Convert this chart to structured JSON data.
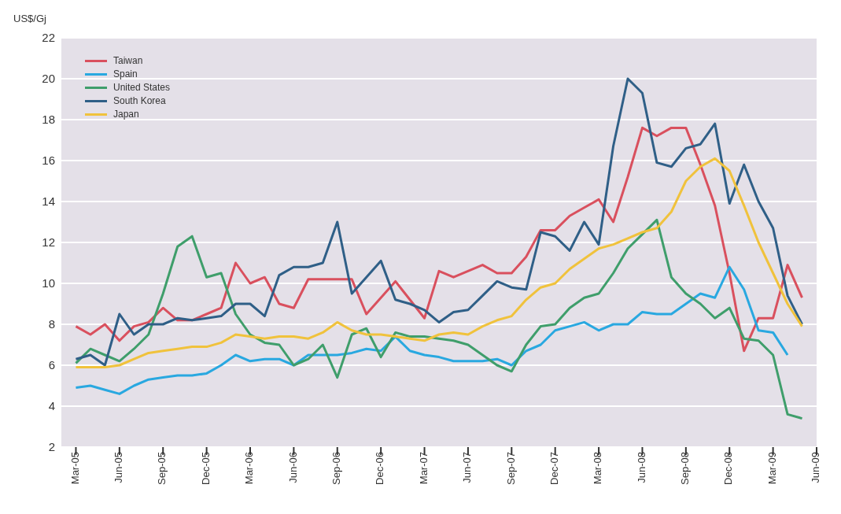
{
  "chart_data": {
    "type": "line",
    "ylabel": "US$/Gj",
    "x": [
      "2005-03",
      "2005-04",
      "2005-05",
      "2005-06",
      "2005-07",
      "2005-08",
      "2005-09",
      "2005-10",
      "2005-11",
      "2005-12",
      "2006-01",
      "2006-02",
      "2006-03",
      "2006-04",
      "2006-05",
      "2006-06",
      "2006-07",
      "2006-08",
      "2006-09",
      "2006-10",
      "2006-11",
      "2006-12",
      "2007-01",
      "2007-02",
      "2007-03",
      "2007-04",
      "2007-05",
      "2007-06",
      "2007-07",
      "2007-08",
      "2007-09",
      "2007-10",
      "2007-11",
      "2007-12",
      "2008-01",
      "2008-02",
      "2008-03",
      "2008-04",
      "2008-05",
      "2008-06",
      "2008-07",
      "2008-08",
      "2008-09",
      "2008-10",
      "2008-11",
      "2008-12",
      "2009-01",
      "2009-02",
      "2009-03",
      "2009-04",
      "2009-05"
    ],
    "series": [
      {
        "name": "Taiwan",
        "color": "#d9505e",
        "values": [
          7.9,
          7.5,
          8.0,
          7.2,
          7.9,
          8.1,
          8.8,
          8.2,
          8.2,
          8.5,
          8.8,
          11.0,
          10.0,
          10.3,
          9.0,
          8.8,
          10.2,
          10.2,
          10.2,
          10.2,
          8.5,
          9.3,
          10.1,
          9.2,
          8.3,
          10.6,
          10.3,
          10.6,
          10.9,
          10.5,
          10.5,
          11.3,
          12.6,
          12.6,
          13.3,
          13.7,
          14.1,
          13.0,
          15.2,
          17.6,
          17.2,
          17.6,
          17.6,
          15.8,
          13.8,
          10.5,
          6.7,
          8.3,
          8.3,
          10.9,
          9.3
        ]
      },
      {
        "name": "Spain",
        "color": "#29a8e0",
        "values": [
          4.9,
          5.0,
          4.8,
          4.6,
          5.0,
          5.3,
          5.4,
          5.5,
          5.5,
          5.6,
          6.0,
          6.5,
          6.2,
          6.3,
          6.3,
          6.0,
          6.5,
          6.5,
          6.5,
          6.6,
          6.8,
          6.7,
          7.4,
          6.7,
          6.5,
          6.4,
          6.2,
          6.2,
          6.2,
          6.3,
          6.0,
          6.7,
          7.0,
          7.7,
          7.9,
          8.1,
          7.7,
          8.0,
          8.0,
          8.6,
          8.5,
          8.5,
          9.0,
          9.5,
          9.3,
          10.8,
          9.7,
          7.7,
          7.6,
          6.5,
          null
        ]
      },
      {
        "name": "United States",
        "color": "#3f9e6b",
        "values": [
          6.1,
          6.8,
          6.5,
          6.2,
          6.8,
          7.5,
          9.5,
          11.8,
          12.3,
          10.3,
          10.5,
          8.5,
          7.5,
          7.1,
          7.0,
          6.0,
          6.3,
          7.0,
          5.4,
          7.5,
          7.8,
          6.4,
          7.6,
          7.4,
          7.4,
          7.3,
          7.2,
          7.0,
          6.5,
          6.0,
          5.7,
          7.0,
          7.9,
          8.0,
          8.8,
          9.3,
          9.5,
          10.5,
          11.7,
          12.4,
          13.1,
          10.3,
          9.5,
          9.0,
          8.3,
          8.8,
          7.3,
          7.2,
          6.5,
          3.6,
          3.4
        ]
      },
      {
        "name": "South Korea",
        "color": "#2f5f87",
        "values": [
          6.3,
          6.5,
          6.0,
          8.5,
          7.5,
          8.0,
          8.0,
          8.3,
          8.2,
          8.3,
          8.4,
          9.0,
          9.0,
          8.4,
          10.4,
          10.8,
          10.8,
          11.0,
          13.0,
          9.5,
          10.3,
          11.1,
          9.2,
          9.0,
          8.7,
          8.1,
          8.6,
          8.7,
          9.4,
          10.1,
          9.8,
          9.7,
          12.5,
          12.3,
          11.6,
          13.0,
          11.9,
          16.7,
          20.0,
          19.3,
          15.9,
          15.7,
          16.6,
          16.8,
          17.8,
          13.9,
          15.8,
          14.0,
          12.7,
          9.4,
          8.0
        ]
      },
      {
        "name": "Japan",
        "color": "#f0c23c",
        "values": [
          5.9,
          5.9,
          5.9,
          6.0,
          6.3,
          6.6,
          6.7,
          6.8,
          6.9,
          6.9,
          7.1,
          7.5,
          7.4,
          7.3,
          7.4,
          7.4,
          7.3,
          7.6,
          8.1,
          7.7,
          7.5,
          7.5,
          7.4,
          7.3,
          7.2,
          7.5,
          7.6,
          7.5,
          7.9,
          8.2,
          8.4,
          9.2,
          9.8,
          10.0,
          10.7,
          11.2,
          11.7,
          11.9,
          12.2,
          12.5,
          12.7,
          13.5,
          15.0,
          15.7,
          16.1,
          15.5,
          13.8,
          12.0,
          10.5,
          9.0,
          7.9
        ]
      }
    ],
    "xlim": [
      "2005-02",
      "2009-06"
    ],
    "xticks": [
      {
        "value": "2005-03",
        "label": "Mar-05"
      },
      {
        "value": "2005-06",
        "label": "Jun-05"
      },
      {
        "value": "2005-09",
        "label": "Sep-05"
      },
      {
        "value": "2005-12",
        "label": "Dec-05"
      },
      {
        "value": "2006-03",
        "label": "Mar-06"
      },
      {
        "value": "2006-06",
        "label": "Jun-06"
      },
      {
        "value": "2006-09",
        "label": "Sep-06"
      },
      {
        "value": "2006-12",
        "label": "Dec-06"
      },
      {
        "value": "2007-03",
        "label": "Mar-07"
      },
      {
        "value": "2007-06",
        "label": "Jun-07"
      },
      {
        "value": "2007-09",
        "label": "Sep-07"
      },
      {
        "value": "2007-12",
        "label": "Dec-07"
      },
      {
        "value": "2008-03",
        "label": "Mar-08"
      },
      {
        "value": "2008-06",
        "label": "Jun-08"
      },
      {
        "value": "2008-09",
        "label": "Sep-08"
      },
      {
        "value": "2008-12",
        "label": "Dec-08"
      },
      {
        "value": "2009-03",
        "label": "Mar-09"
      },
      {
        "value": "2009-06",
        "label": "Jun-09"
      }
    ],
    "ylim": [
      2,
      22
    ],
    "yticks": [
      2,
      4,
      6,
      8,
      10,
      12,
      14,
      16,
      18,
      20,
      22
    ],
    "grid": "y",
    "legend": "top left",
    "marker": "none",
    "line_style": "solid"
  }
}
